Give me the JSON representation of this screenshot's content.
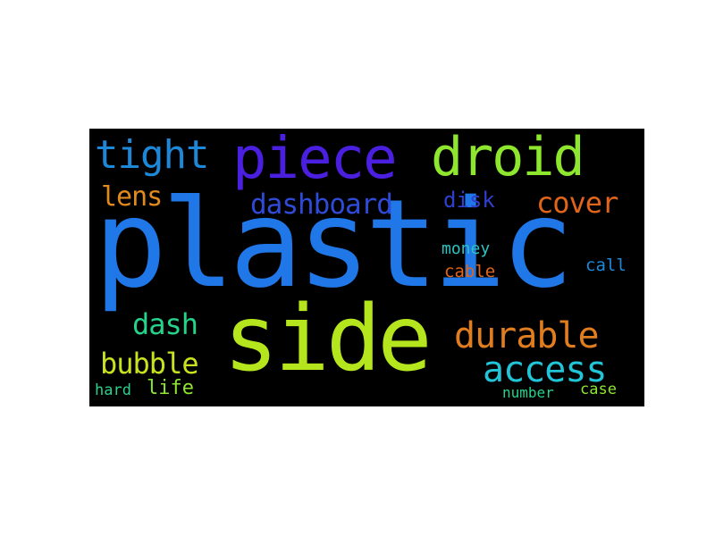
{
  "word_cloud": {
    "background": "#000000",
    "words": [
      {
        "key": "plastic",
        "text": "plastic",
        "color": "#1f77e8"
      },
      {
        "key": "side",
        "text": "side",
        "color": "#b5e61d"
      },
      {
        "key": "piece",
        "text": "piece",
        "color": "#4a1fe0"
      },
      {
        "key": "droid",
        "text": "droid",
        "color": "#8ee62e"
      },
      {
        "key": "tight",
        "text": "tight",
        "color": "#1e88d8"
      },
      {
        "key": "dashboard",
        "text": "dashboard",
        "color": "#2f4ad6"
      },
      {
        "key": "durable",
        "text": "durable",
        "color": "#e07d1f"
      },
      {
        "key": "access",
        "text": "access",
        "color": "#22c4d8"
      },
      {
        "key": "cover",
        "text": "cover",
        "color": "#e0651b"
      },
      {
        "key": "lens",
        "text": "lens",
        "color": "#e08a1f"
      },
      {
        "key": "dash",
        "text": "dash",
        "color": "#25d38a"
      },
      {
        "key": "bubble",
        "text": "bubble",
        "color": "#c9e21f"
      },
      {
        "key": "disk",
        "text": "disk",
        "color": "#2f3fd0"
      },
      {
        "key": "money",
        "text": "money",
        "color": "#2ec2c2"
      },
      {
        "key": "cable",
        "text": "cable",
        "color": "#e0651b"
      },
      {
        "key": "call",
        "text": "call",
        "color": "#1e88d8"
      },
      {
        "key": "life",
        "text": "life",
        "color": "#8ee62e"
      },
      {
        "key": "hard",
        "text": "hard",
        "color": "#25d38a"
      },
      {
        "key": "number",
        "text": "number",
        "color": "#25d38a"
      },
      {
        "key": "case",
        "text": "case",
        "color": "#8ee62e"
      }
    ]
  }
}
